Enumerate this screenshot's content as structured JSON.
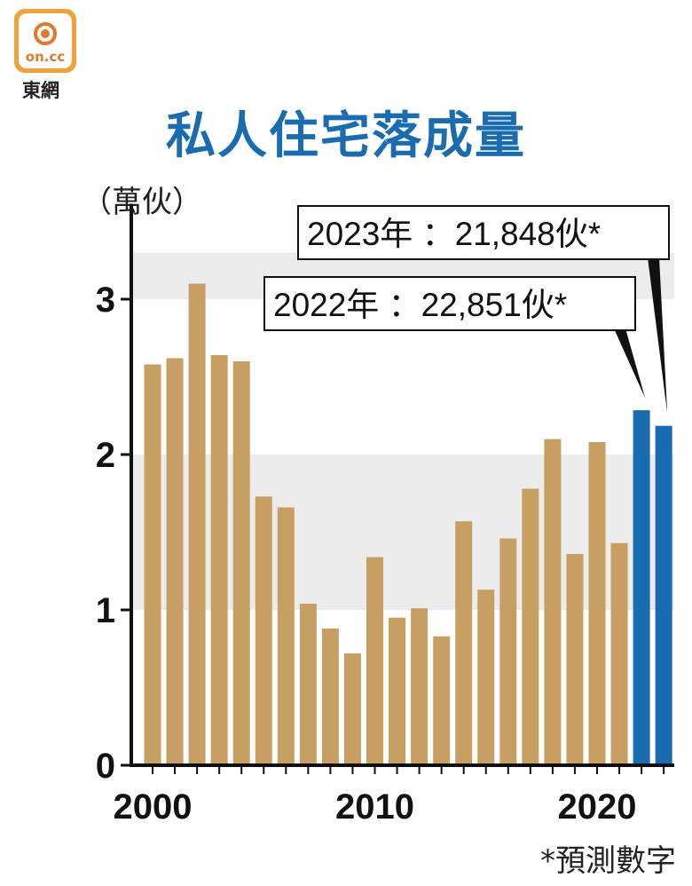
{
  "brand": {
    "logo_text": "on.cc",
    "name": "東網"
  },
  "title": "私人住宅落成量",
  "unit_label": "（萬伙）",
  "footnote": "*預測數字",
  "colors": {
    "actual": "#c79f63",
    "forecast": "#1a6cb0",
    "band": "#ececec",
    "title": "#1a6cb0"
  },
  "chart_data": {
    "type": "bar",
    "title": "私人住宅落成量",
    "ylabel": "（萬伙）",
    "xlabel": "",
    "ylim": [
      0,
      3.3
    ],
    "yticks": [
      0,
      1,
      2,
      3
    ],
    "xticks": [
      2000,
      2010,
      2020
    ],
    "categories": [
      2000,
      2001,
      2002,
      2003,
      2004,
      2005,
      2006,
      2007,
      2008,
      2009,
      2010,
      2011,
      2012,
      2013,
      2014,
      2015,
      2016,
      2017,
      2018,
      2019,
      2020,
      2021,
      2022,
      2023
    ],
    "values": [
      2.58,
      2.62,
      3.1,
      2.64,
      2.6,
      1.73,
      1.66,
      1.04,
      0.88,
      0.72,
      1.34,
      0.95,
      1.01,
      0.83,
      1.57,
      1.13,
      1.46,
      1.78,
      2.1,
      1.36,
      2.08,
      1.43,
      2.2851,
      2.1848
    ],
    "forecast_flags": [
      false,
      false,
      false,
      false,
      false,
      false,
      false,
      false,
      false,
      false,
      false,
      false,
      false,
      false,
      false,
      false,
      false,
      false,
      false,
      false,
      false,
      false,
      true,
      true
    ],
    "grid_bands": [
      [
        1,
        2
      ],
      [
        3,
        3.3
      ]
    ],
    "annotations": [
      {
        "year": 2023,
        "text": "2023年 ：21,848伙*"
      },
      {
        "year": 2022,
        "text": "2022年 ：22,851伙*"
      }
    ]
  }
}
